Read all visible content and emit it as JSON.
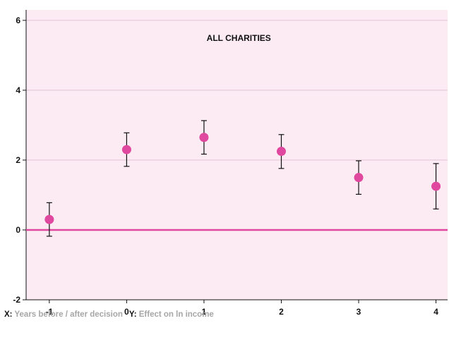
{
  "chart_data": {
    "type": "scatter",
    "title": "ALL CHARITIES",
    "x": [
      -1,
      0,
      1,
      2,
      3,
      4
    ],
    "y": [
      0.3,
      2.3,
      2.65,
      2.25,
      1.5,
      1.25
    ],
    "ci_low": [
      -0.18,
      1.82,
      2.17,
      1.76,
      1.02,
      0.6
    ],
    "ci_high": [
      0.78,
      2.78,
      3.13,
      2.73,
      1.98,
      1.9
    ],
    "x_ticks": [
      "-1",
      "0",
      "1",
      "2",
      "3",
      "4"
    ],
    "y_ticks": [
      "-2",
      "0",
      "2",
      "4",
      "6"
    ],
    "xlim": [
      -1.3,
      4.15
    ],
    "ylim": [
      -2,
      6.3
    ],
    "reference_line_y": 0,
    "xlabel_key": "X:",
    "xlabel": "Years before / after decision",
    "ylabel_key": "Y:",
    "ylabel": "Effect on ln income",
    "grid": "horizontal",
    "colors": {
      "background": "#fcebf3",
      "marker": "#e0479e",
      "reference_line": "#e0479e",
      "error_bar": "#111111",
      "grid": "#e2c4d3"
    }
  }
}
